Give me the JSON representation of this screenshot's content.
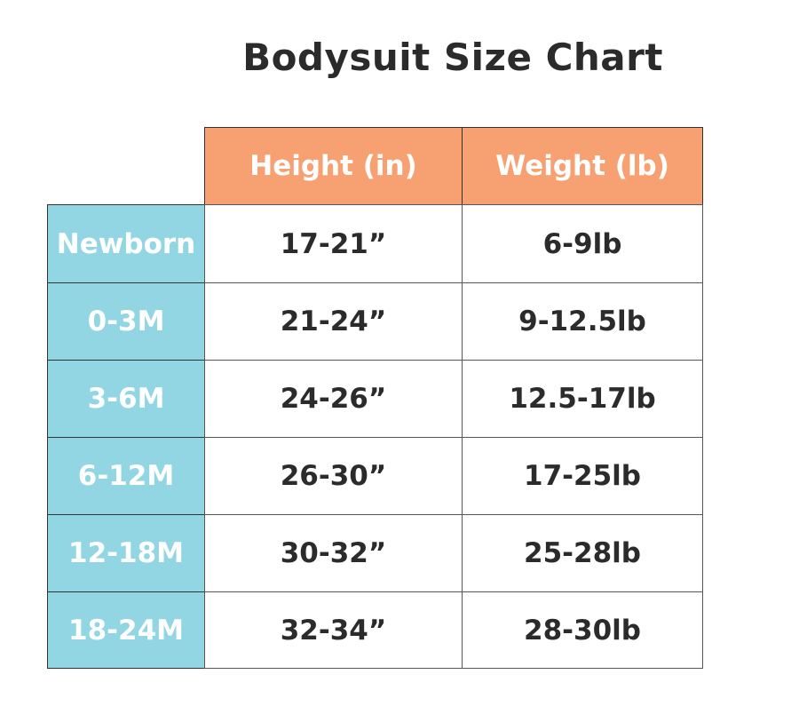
{
  "title": "Bodysuit Size Chart",
  "colors": {
    "header_bg": "#F7A072",
    "size_bg": "#92D6E3",
    "text": "#2b2b2b"
  },
  "chart_data": {
    "type": "table",
    "title": "Bodysuit Size Chart",
    "columns": [
      "Height (in)",
      "Weight (lb)"
    ],
    "rows": [
      {
        "size": "Newborn",
        "height": "17-21”",
        "weight": "6-9lb"
      },
      {
        "size": "0-3M",
        "height": "21-24”",
        "weight": "9-12.5lb"
      },
      {
        "size": "3-6M",
        "height": "24-26”",
        "weight": "12.5-17lb"
      },
      {
        "size": "6-12M",
        "height": "26-30”",
        "weight": "17-25lb"
      },
      {
        "size": "12-18M",
        "height": "30-32”",
        "weight": "25-28lb"
      },
      {
        "size": "18-24M",
        "height": "32-34”",
        "weight": "28-30lb"
      }
    ]
  }
}
